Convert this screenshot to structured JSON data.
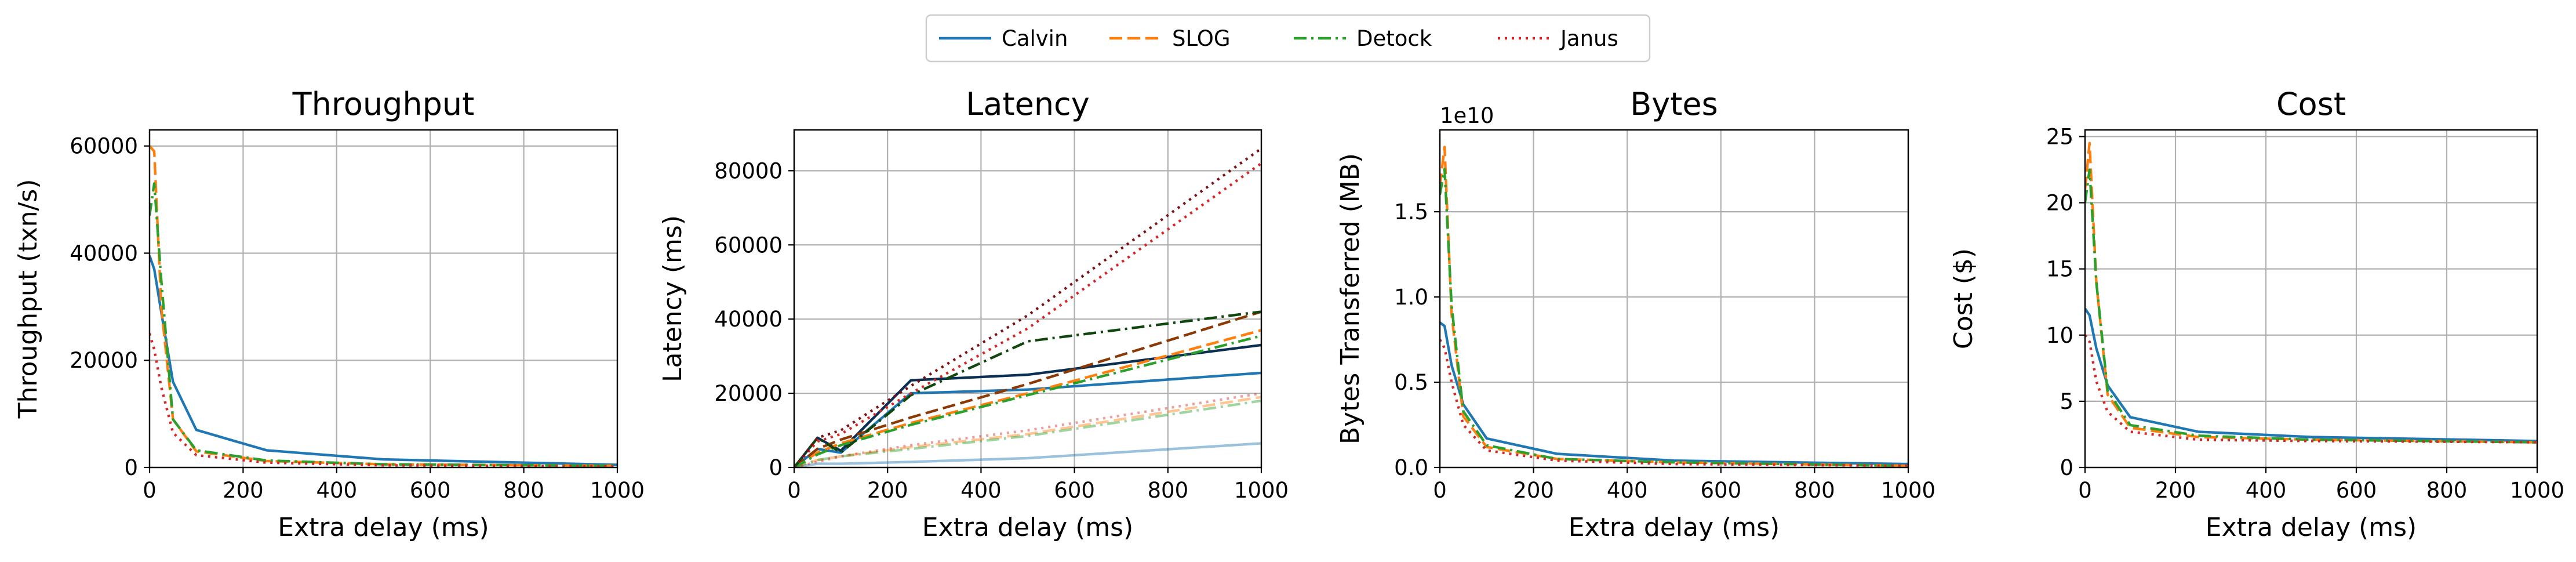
{
  "legend": {
    "placement": "top-center",
    "entries": [
      {
        "name": "Calvin",
        "color": "#1f77b4",
        "dash": "solid"
      },
      {
        "name": "SLOG",
        "color": "#ff7f0e",
        "dash": "dashed"
      },
      {
        "name": "Detock",
        "color": "#2ca02c",
        "dash": "dashdot"
      },
      {
        "name": "Janus",
        "color": "#d62728",
        "dash": "dotted"
      }
    ]
  },
  "chart_data": [
    {
      "type": "line",
      "title": "Throughput",
      "xlabel": "Extra delay (ms)",
      "ylabel": "Throughput (txn/s)",
      "xlim": [
        0,
        1000
      ],
      "ylim": [
        0,
        63000
      ],
      "xticks": [
        0,
        200,
        400,
        600,
        800,
        1000
      ],
      "yticks": [
        0,
        20000,
        40000,
        60000
      ],
      "grid": true,
      "series": [
        {
          "name": "Calvin",
          "color": "#1f77b4",
          "dash": "solid",
          "x": [
            0,
            10,
            25,
            50,
            100,
            250,
            500,
            1000
          ],
          "y": [
            39500,
            37000,
            29000,
            16000,
            7000,
            3200,
            1500,
            500
          ]
        },
        {
          "name": "SLOG",
          "color": "#ff7f0e",
          "dash": "dashed",
          "x": [
            0,
            10,
            25,
            50,
            100,
            250,
            500,
            1000
          ],
          "y": [
            60000,
            59000,
            30000,
            9000,
            3000,
            1200,
            600,
            300
          ]
        },
        {
          "name": "Detock",
          "color": "#2ca02c",
          "dash": "dashdot",
          "x": [
            0,
            10,
            25,
            50,
            100,
            250,
            500,
            1000
          ],
          "y": [
            47000,
            53000,
            35000,
            9000,
            3200,
            1300,
            600,
            300
          ]
        },
        {
          "name": "Janus",
          "color": "#d62728",
          "dash": "dotted",
          "x": [
            0,
            10,
            25,
            50,
            100,
            250,
            500,
            1000
          ],
          "y": [
            25000,
            22000,
            15000,
            6500,
            2300,
            900,
            400,
            200
          ]
        }
      ]
    },
    {
      "type": "line",
      "title": "Latency",
      "xlabel": "Extra delay (ms)",
      "ylabel": "Latency (ms)",
      "xlim": [
        0,
        1000
      ],
      "ylim": [
        0,
        91000
      ],
      "xticks": [
        0,
        200,
        400,
        600,
        800,
        1000
      ],
      "yticks": [
        0,
        20000,
        40000,
        60000,
        80000
      ],
      "grid": true,
      "series": [
        {
          "name": "Calvin",
          "color": "#1f77b4",
          "dash": "solid",
          "x": [
            0,
            50,
            100,
            250,
            500,
            1000
          ],
          "y": [
            0,
            5000,
            4000,
            20000,
            21000,
            25500
          ]
        },
        {
          "name": "Calvin",
          "color": "#1f77b4",
          "dash": "solid",
          "opacity": 0.45,
          "x": [
            0,
            50,
            100,
            250,
            500,
            1000
          ],
          "y": [
            0,
            1000,
            1000,
            1500,
            2500,
            6500
          ]
        },
        {
          "name": "Calvin",
          "color": "#0b2f52",
          "dash": "solid",
          "x": [
            0,
            50,
            100,
            250,
            500,
            1000
          ],
          "y": [
            0,
            8000,
            4500,
            23500,
            25000,
            33000
          ]
        },
        {
          "name": "SLOG",
          "color": "#ff7f0e",
          "dash": "dashed",
          "x": [
            0,
            50,
            100,
            250,
            500,
            1000
          ],
          "y": [
            0,
            4000,
            6500,
            12000,
            20000,
            37000
          ]
        },
        {
          "name": "SLOG",
          "color": "#ff7f0e",
          "dash": "dashed",
          "opacity": 0.45,
          "x": [
            0,
            50,
            100,
            250,
            500,
            1000
          ],
          "y": [
            0,
            2000,
            3000,
            5500,
            9000,
            19000
          ]
        },
        {
          "name": "SLOG",
          "color": "#8c3a05",
          "dash": "dashed",
          "x": [
            0,
            50,
            100,
            250,
            500,
            1000
          ],
          "y": [
            0,
            5000,
            7500,
            13500,
            22500,
            42000
          ]
        },
        {
          "name": "Detock",
          "color": "#2ca02c",
          "dash": "dashdot",
          "x": [
            0,
            50,
            100,
            250,
            500,
            1000
          ],
          "y": [
            0,
            3500,
            6000,
            11500,
            19500,
            35500
          ]
        },
        {
          "name": "Detock",
          "color": "#2ca02c",
          "dash": "dashdot",
          "opacity": 0.45,
          "x": [
            0,
            50,
            100,
            250,
            500,
            1000
          ],
          "y": [
            0,
            2000,
            3000,
            5000,
            8500,
            18000
          ]
        },
        {
          "name": "Detock",
          "color": "#10470f",
          "dash": "dashdot",
          "x": [
            0,
            50,
            100,
            250,
            500,
            1000
          ],
          "y": [
            0,
            8000,
            4000,
            19500,
            34000,
            42000
          ]
        },
        {
          "name": "Janus",
          "color": "#d62728",
          "dash": "dotted",
          "x": [
            0,
            50,
            100,
            250,
            500,
            1000
          ],
          "y": [
            0,
            7000,
            9000,
            20000,
            37500,
            82000
          ]
        },
        {
          "name": "Janus",
          "color": "#d62728",
          "dash": "dotted",
          "opacity": 0.45,
          "x": [
            0,
            50,
            100,
            250,
            500,
            1000
          ],
          "y": [
            0,
            1500,
            3000,
            6000,
            10000,
            20000
          ]
        },
        {
          "name": "Janus",
          "color": "#7a1112",
          "dash": "dotted",
          "x": [
            0,
            50,
            100,
            250,
            500,
            1000
          ],
          "y": [
            0,
            8000,
            10000,
            22000,
            41000,
            86000
          ]
        }
      ]
    },
    {
      "type": "line",
      "title": "Bytes",
      "xlabel": "Extra delay (ms)",
      "ylabel": "Bytes Transferred (MB)",
      "offset_text": "1e10",
      "xlim": [
        0,
        1000
      ],
      "ylim": [
        0,
        1.98
      ],
      "xticks": [
        0,
        200,
        400,
        600,
        800,
        1000
      ],
      "yticks": [
        0.0,
        0.5,
        1.0,
        1.5
      ],
      "ytick_labels": [
        "0.0",
        "0.5",
        "1.0",
        "1.5"
      ],
      "grid": true,
      "series": [
        {
          "name": "Calvin",
          "color": "#1f77b4",
          "dash": "solid",
          "x": [
            0,
            10,
            25,
            50,
            100,
            250,
            500,
            1000
          ],
          "y": [
            0.85,
            0.83,
            0.6,
            0.37,
            0.17,
            0.08,
            0.04,
            0.02
          ]
        },
        {
          "name": "SLOG",
          "color": "#ff7f0e",
          "dash": "dashed",
          "x": [
            0,
            10,
            25,
            50,
            100,
            250,
            500,
            1000
          ],
          "y": [
            1.65,
            1.88,
            0.9,
            0.3,
            0.12,
            0.05,
            0.03,
            0.01
          ]
        },
        {
          "name": "Detock",
          "color": "#2ca02c",
          "dash": "dashdot",
          "x": [
            0,
            10,
            25,
            50,
            100,
            250,
            500,
            1000
          ],
          "y": [
            1.6,
            1.75,
            0.95,
            0.33,
            0.13,
            0.05,
            0.03,
            0.01
          ]
        },
        {
          "name": "Janus",
          "color": "#d62728",
          "dash": "dotted",
          "x": [
            0,
            10,
            25,
            50,
            100,
            250,
            500,
            1000
          ],
          "y": [
            0.75,
            0.7,
            0.5,
            0.25,
            0.1,
            0.04,
            0.02,
            0.01
          ]
        }
      ]
    },
    {
      "type": "line",
      "title": "Cost",
      "xlabel": "Extra delay (ms)",
      "ylabel": "Cost ($)",
      "xlim": [
        0,
        1000
      ],
      "ylim": [
        0,
        25.5
      ],
      "xticks": [
        0,
        200,
        400,
        600,
        800,
        1000
      ],
      "yticks": [
        0,
        5,
        10,
        15,
        20,
        25
      ],
      "grid": true,
      "series": [
        {
          "name": "Calvin",
          "color": "#1f77b4",
          "dash": "solid",
          "x": [
            0,
            10,
            25,
            50,
            100,
            250,
            500,
            1000
          ],
          "y": [
            12,
            11.5,
            9,
            6.2,
            3.8,
            2.7,
            2.3,
            2.0
          ]
        },
        {
          "name": "SLOG",
          "color": "#ff7f0e",
          "dash": "dashed",
          "x": [
            0,
            10,
            25,
            50,
            100,
            250,
            500,
            1000
          ],
          "y": [
            21,
            24.5,
            14,
            5.5,
            3.0,
            2.3,
            2.1,
            1.9
          ]
        },
        {
          "name": "Detock",
          "color": "#2ca02c",
          "dash": "dashdot",
          "x": [
            0,
            10,
            25,
            50,
            100,
            250,
            500,
            1000
          ],
          "y": [
            20,
            22.5,
            14,
            5.8,
            3.2,
            2.4,
            2.1,
            1.9
          ]
        },
        {
          "name": "Janus",
          "color": "#d62728",
          "dash": "dotted",
          "x": [
            0,
            10,
            25,
            50,
            100,
            250,
            500,
            1000
          ],
          "y": [
            10,
            9.5,
            6.5,
            4.2,
            2.7,
            2.1,
            2.0,
            1.9
          ]
        }
      ]
    }
  ]
}
